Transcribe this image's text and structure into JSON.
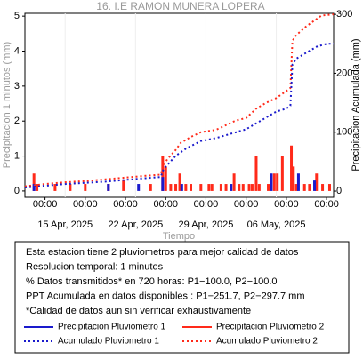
{
  "chart_data": {
    "type": "combo",
    "title": "16. I.E RAMON MUNERA LOPERA",
    "y_label": "Precipitacion 1 minutos (mm)",
    "y2_label": "Precipitacion Acumulada (mm)",
    "x_label": "Tiempo",
    "xlim": [
      0,
      30.7
    ],
    "xticks": [
      {
        "value": 2,
        "label": "00:00"
      },
      {
        "value": 6,
        "label": "00:00"
      },
      {
        "value": 10,
        "label": "00:00"
      },
      {
        "value": 14,
        "label": "00:00"
      },
      {
        "value": 18,
        "label": "00:00"
      },
      {
        "value": 22,
        "label": "00:00"
      },
      {
        "value": 26,
        "label": "00:00"
      },
      {
        "value": 30,
        "label": "00:00"
      }
    ],
    "xdate_ticks": [
      {
        "value": 4,
        "label": "15 Apr, 2025"
      },
      {
        "value": 11,
        "label": "22 Apr, 2025"
      },
      {
        "value": 18,
        "label": "29 Apr, 2025"
      },
      {
        "value": 25,
        "label": "06 May, 2025"
      }
    ],
    "ylim": [
      -0.18,
      5.08
    ],
    "yticks": [
      0,
      1,
      2,
      3,
      4,
      5
    ],
    "y2lim": [
      -10.5,
      301.7
    ],
    "y2ticks": [
      0,
      100,
      200,
      300
    ],
    "series": [
      {
        "name": "Precipitacion Pluviometro 2",
        "color": "#ff2a1a",
        "mark": "bar",
        "x": [
          0.9,
          1.2,
          3,
          4.5,
          6,
          8.3,
          9.8,
          12.5,
          13.7,
          14.0,
          14.5,
          15,
          15.4,
          16,
          16.5,
          17.5,
          18.3,
          18.6,
          19.5,
          20,
          20.8,
          21.3,
          21.7,
          22.3,
          22.6,
          23,
          23.3,
          24.2,
          24.8,
          25.1,
          25.6,
          26.5,
          26.7,
          27,
          27.8,
          28.3,
          29,
          29.6,
          30.3
        ],
        "values": [
          0.5,
          0.2,
          0.2,
          0.2,
          0.2,
          0.2,
          0.3,
          0.2,
          1.0,
          0.7,
          0.2,
          0.2,
          0.5,
          0.2,
          0.2,
          0.2,
          0.2,
          0.2,
          0.2,
          0.2,
          0.5,
          0.2,
          0.2,
          0.2,
          0.2,
          1.0,
          0.2,
          0.2,
          0.5,
          0.5,
          1.0,
          1.3,
          0.7,
          0.2,
          0.2,
          0.2,
          0.5,
          0.2,
          0.2
        ]
      },
      {
        "name": "Precipitacion Pluviometro 1",
        "color": "#1a1acc",
        "mark": "bar",
        "x": [
          0.9,
          8.3,
          11.3,
          13.7,
          15.6,
          20.5,
          24.5,
          27.2,
          28.8
        ],
        "values": [
          0.2,
          0.2,
          0.2,
          0.4,
          0.2,
          0.2,
          0.5,
          0.5,
          0.3
        ]
      },
      {
        "name": "Acumulado Pluviometro 2",
        "color": "#ff2a1a",
        "mark": "line",
        "axis": "y2",
        "x": [
          0,
          2,
          4,
          6,
          8,
          10,
          12,
          13.5,
          13.8,
          14.2,
          15,
          15.5,
          16.5,
          17.5,
          19,
          20,
          21,
          22,
          23,
          24,
          25,
          26,
          26.4,
          26.6,
          27,
          28,
          29,
          29.5,
          30.7
        ],
        "values": [
          8,
          12,
          15,
          17,
          20,
          23,
          26,
          28,
          45,
          55,
          70,
          82,
          92,
          100,
          104,
          112,
          120,
          124,
          140,
          150,
          158,
          170,
          175,
          255,
          265,
          280,
          292,
          298,
          300
        ]
      },
      {
        "name": "Acumulado Pluviometro 1",
        "color": "#1a1acc",
        "mark": "line",
        "axis": "y2",
        "x": [
          0,
          4,
          8,
          12,
          13.5,
          13.8,
          14.2,
          15,
          16,
          17.5,
          19,
          20,
          22,
          23,
          24,
          25,
          26,
          26.4,
          26.6,
          27,
          28,
          29,
          30,
          30.7
        ],
        "values": [
          6,
          12,
          16,
          22,
          24,
          38,
          45,
          60,
          72,
          85,
          90,
          95,
          105,
          115,
          125,
          135,
          140,
          145,
          215,
          225,
          235,
          245,
          250,
          250
        ]
      }
    ],
    "notes": [
      "Esta estacion tiene 2 pluviometros para mejor calidad de datos",
      "Resolucion temporal: 1 minutos",
      "% Datos transmitidos* en 720 horas: P1−100.0, P2−100.0",
      "PPT Acumulada en datos disponibles : P1−251.7, P2−297.7 mm",
      "*Calidad de datos aun sin verificar exhaustivamente"
    ],
    "legend_order": [
      1,
      0,
      3,
      2
    ]
  }
}
